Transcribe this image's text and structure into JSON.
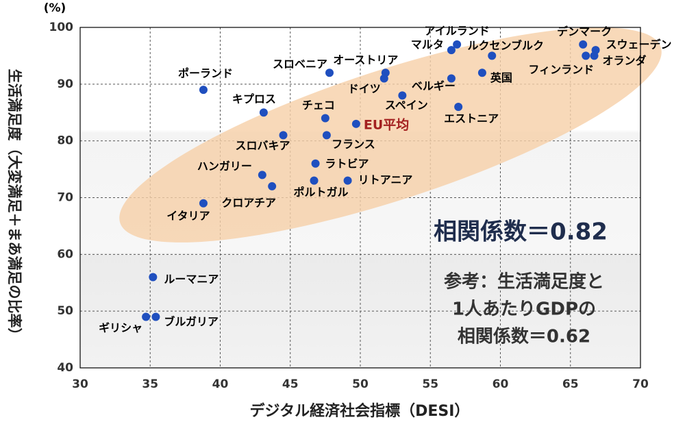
{
  "chart_data": {
    "type": "scatter",
    "x_label": "デジタル経済社会指標（DESI）",
    "y_label": "生活満足度（大変満足＋まあ満足の比率）",
    "y_unit": "(%)",
    "xlim": [
      30,
      70
    ],
    "xticks": [
      30,
      35,
      40,
      45,
      50,
      55,
      60,
      65,
      70
    ],
    "ylim": [
      40,
      100
    ],
    "yticks": [
      40,
      50,
      60,
      70,
      80,
      90,
      100
    ],
    "grid": true,
    "color": "#1f4fbf",
    "labels": [
      "ポーランド",
      "キプロス",
      "スロベニア",
      "オーストリア",
      "ドイツ",
      "チェコ",
      "スロバキア",
      "フランス",
      "スペイン",
      "EU平均",
      "エストニア",
      "ベルギー",
      "英国",
      "アイルランド",
      "マルタ",
      "ルクセンブルク",
      "デンマーク",
      "スウェーデン",
      "フィンランド",
      "オランダ",
      "ハンガリー",
      "クロアチア",
      "ラトビア",
      "ポルトガル",
      "リトアニア",
      "イタリア",
      "ルーマニア",
      "ギリシャ",
      "ブルガリア"
    ],
    "x": [
      38.8,
      43.1,
      47.8,
      51.8,
      51.7,
      47.5,
      44.5,
      47.6,
      53.0,
      49.7,
      57.0,
      56.5,
      58.7,
      56.9,
      56.5,
      59.4,
      65.9,
      66.8,
      66.1,
      66.7,
      43.0,
      43.7,
      46.8,
      46.7,
      49.1,
      38.8,
      35.2,
      34.7,
      35.4
    ],
    "y": [
      89,
      85,
      92,
      92,
      91,
      84,
      81,
      81,
      88,
      83,
      86,
      91,
      92,
      97,
      96,
      95,
      97,
      96,
      95,
      95,
      74,
      72,
      76,
      73,
      73,
      69,
      56,
      49,
      49
    ],
    "label_colors": [
      "#000",
      "#000",
      "#000",
      "#000",
      "#000",
      "#000",
      "#000",
      "#000",
      "#000",
      "#a32020",
      "#000",
      "#000",
      "#000",
      "#000",
      "#000",
      "#000",
      "#000",
      "#000",
      "#000",
      "#000",
      "#000",
      "#000",
      "#000",
      "#000",
      "#000",
      "#000",
      "#000",
      "#000",
      "#000"
    ],
    "annotations": [
      "相関係数＝0.82",
      "参考：生活満足度と",
      "1人あたりGDPの",
      "相関係数＝0.62"
    ]
  }
}
